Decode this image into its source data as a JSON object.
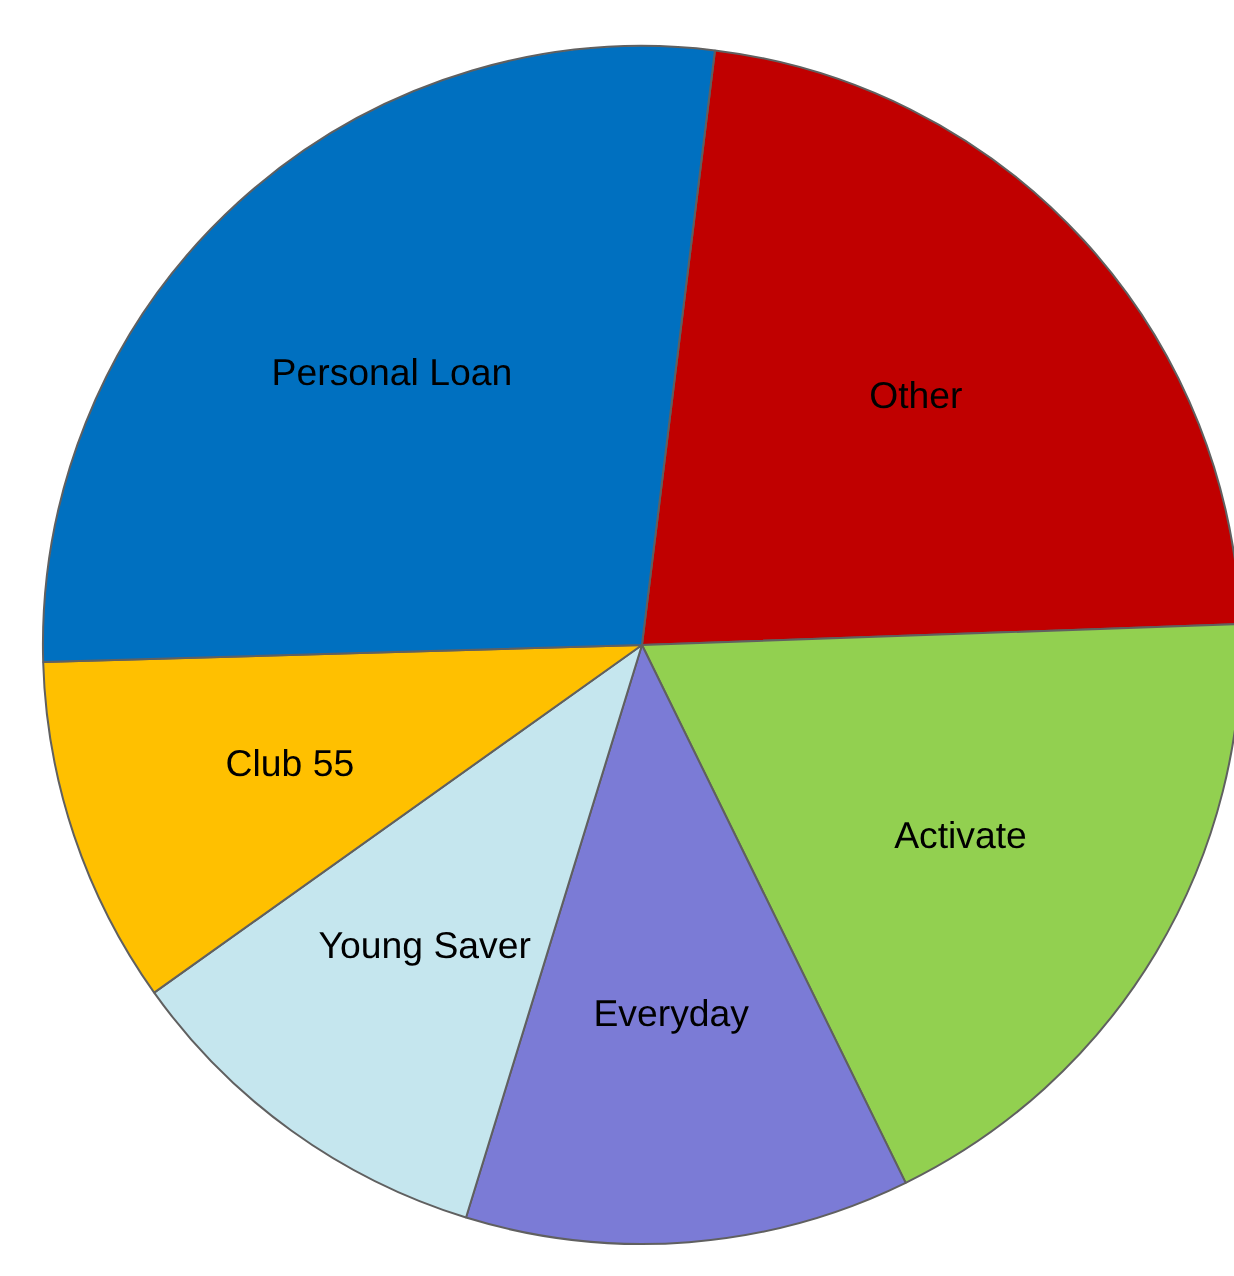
{
  "chart_data": {
    "type": "pie",
    "categories": [
      "Other",
      "Activate",
      "Everyday",
      "Young Saver",
      "Club 55",
      "Personal Loan"
    ],
    "values": [
      22.5,
      18.3,
      12.0,
      10.4,
      9.4,
      27.4
    ],
    "colors": [
      "#c00000",
      "#92d050",
      "#7b7bd6",
      "#c5e6ee",
      "#ffc000",
      "#0070c0"
    ]
  }
}
